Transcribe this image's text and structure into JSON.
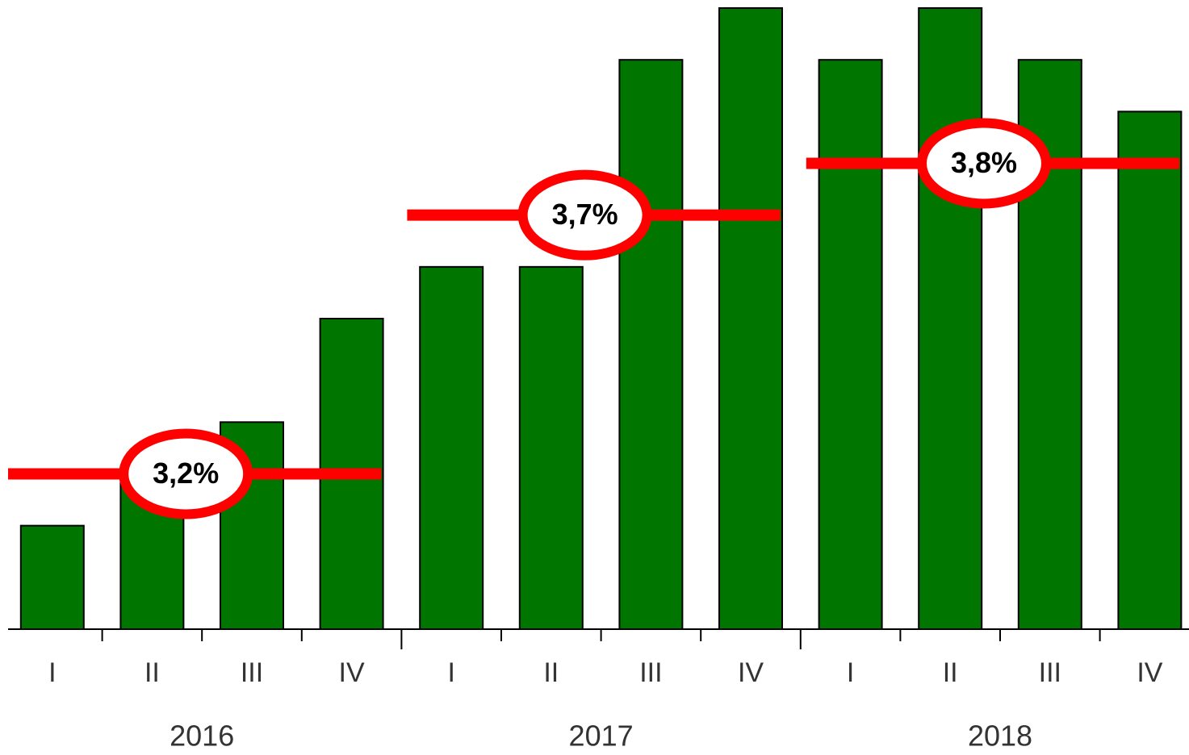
{
  "chart_data": {
    "type": "bar",
    "categories": [
      "I",
      "II",
      "III",
      "IV",
      "I",
      "II",
      "III",
      "IV",
      "I",
      "II",
      "III",
      "IV"
    ],
    "groups": [
      "2016",
      "2017",
      "2018"
    ],
    "values": [
      3.1,
      3.2,
      3.3,
      3.5,
      3.6,
      3.6,
      4.0,
      4.1,
      4.0,
      4.1,
      4.0,
      3.9
    ],
    "color": "#007500",
    "ylim": [
      2.9,
      4.1
    ],
    "annual": {
      "values": [
        3.2,
        3.7,
        3.8
      ],
      "value_labels": [
        "3,2%",
        "3,7%",
        "3,8%"
      ],
      "color": "#ff0000"
    }
  }
}
